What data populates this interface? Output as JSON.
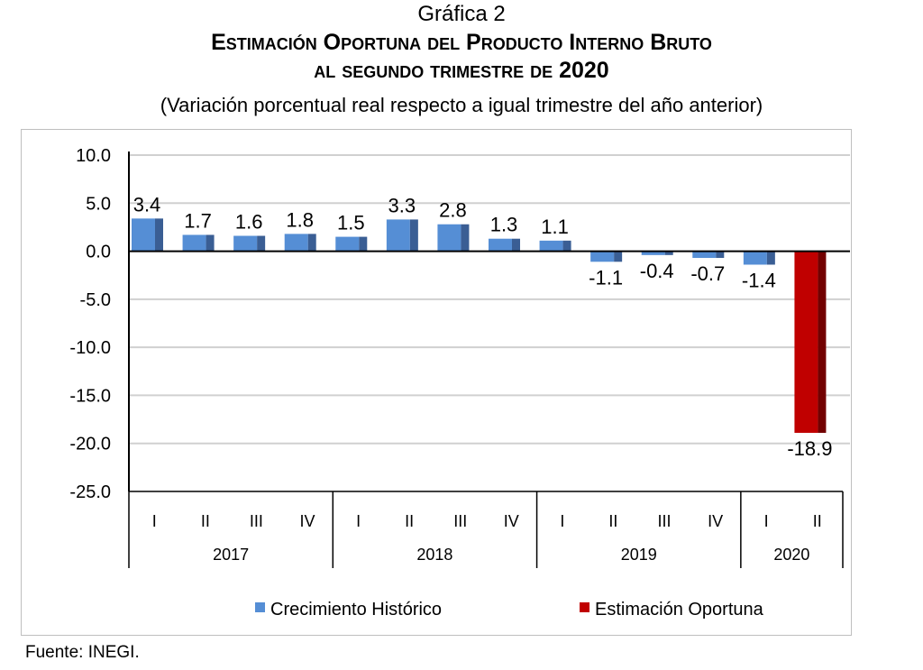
{
  "header": {
    "label": "Gráfica 2",
    "title_line1": "Estimación Oportuna del Producto Interno Bruto",
    "title_line2": "al segundo trimestre de 2020",
    "subtitle": "(Variación porcentual real respecto a igual trimestre del año anterior)"
  },
  "source": "Fuente: INEGI.",
  "colors": {
    "historic": "#558ED5",
    "historic_side": "#3A5E94",
    "estimate": "#C00000",
    "estimate_side": "#720000",
    "grid": "#d0d0d0"
  },
  "chart_data": {
    "type": "bar",
    "title": "Estimación Oportuna del Producto Interno Bruto al segundo trimestre de 2020",
    "categories": [
      "I",
      "II",
      "III",
      "IV",
      "I",
      "II",
      "III",
      "IV",
      "I",
      "II",
      "III",
      "IV",
      "I",
      "II"
    ],
    "groups": [
      {
        "label": "2017",
        "count": 4
      },
      {
        "label": "2018",
        "count": 4
      },
      {
        "label": "2019",
        "count": 4
      },
      {
        "label": "2020",
        "count": 2
      }
    ],
    "values": [
      3.4,
      1.7,
      1.6,
      1.8,
      1.5,
      3.3,
      2.8,
      1.3,
      1.1,
      -1.1,
      -0.4,
      -0.7,
      -1.4,
      -18.9
    ],
    "value_labels": [
      "3.4",
      "1.7",
      "1.6",
      "1.8",
      "1.5",
      "3.3",
      "2.8",
      "1.3",
      "1.1",
      "-1.1",
      "-0.4",
      "-0.7",
      "-1.4",
      "-18.9"
    ],
    "series_of_point": [
      "historic",
      "historic",
      "historic",
      "historic",
      "historic",
      "historic",
      "historic",
      "historic",
      "historic",
      "historic",
      "historic",
      "historic",
      "historic",
      "estimate"
    ],
    "legend": [
      {
        "key": "historic",
        "label": "Crecimiento  Histórico"
      },
      {
        "key": "estimate",
        "label": "Estimación Oportuna"
      }
    ],
    "legend_position": "bottom",
    "ylim": [
      -25,
      10
    ],
    "yticks": [
      "10.0",
      "5.0",
      "0.0",
      "-5.0",
      "-10.0",
      "-15.0",
      "-20.0",
      "-25.0"
    ],
    "ytick_values": [
      10,
      5,
      0,
      -5,
      -10,
      -15,
      -20,
      -25
    ],
    "grid": true
  }
}
